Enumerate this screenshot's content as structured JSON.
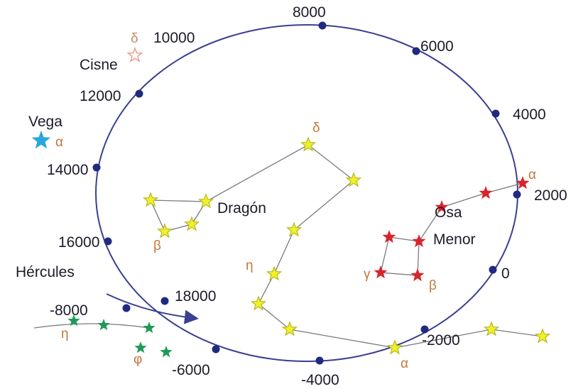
{
  "precession_circle": {
    "year_labels": [
      "8000",
      "6000",
      "4000",
      "2000",
      "0",
      "-2000",
      "-4000",
      "-6000",
      "-8000",
      "18000",
      "16000",
      "14000",
      "12000",
      "10000"
    ],
    "direction": "arrow"
  },
  "constellations": {
    "dragon": {
      "name": "Dragón",
      "labels": [
        "δ",
        "β",
        "η",
        "α"
      ],
      "color": "#f0f02a"
    },
    "ursa_minor": {
      "name": "Osa\nMenor",
      "name_line1": "Osa",
      "name_line2": "Menor",
      "labels": [
        "α",
        "γ",
        "β"
      ],
      "color": "#d8242c"
    },
    "hercules": {
      "name": "Hércules",
      "labels": [
        "η",
        "φ"
      ],
      "color": "#1f9a55"
    },
    "cygnus": {
      "name": "Cisne",
      "labels": [
        "δ"
      ],
      "color": "#e8a090"
    },
    "vega": {
      "name": "Vega",
      "labels": [
        "α"
      ],
      "color": "#2aa5e0"
    }
  },
  "colors": {
    "circle": "#3b3f8f",
    "year_dot": "#1f2a80",
    "line": "#7a7a7a",
    "greek": "#c2783a"
  }
}
